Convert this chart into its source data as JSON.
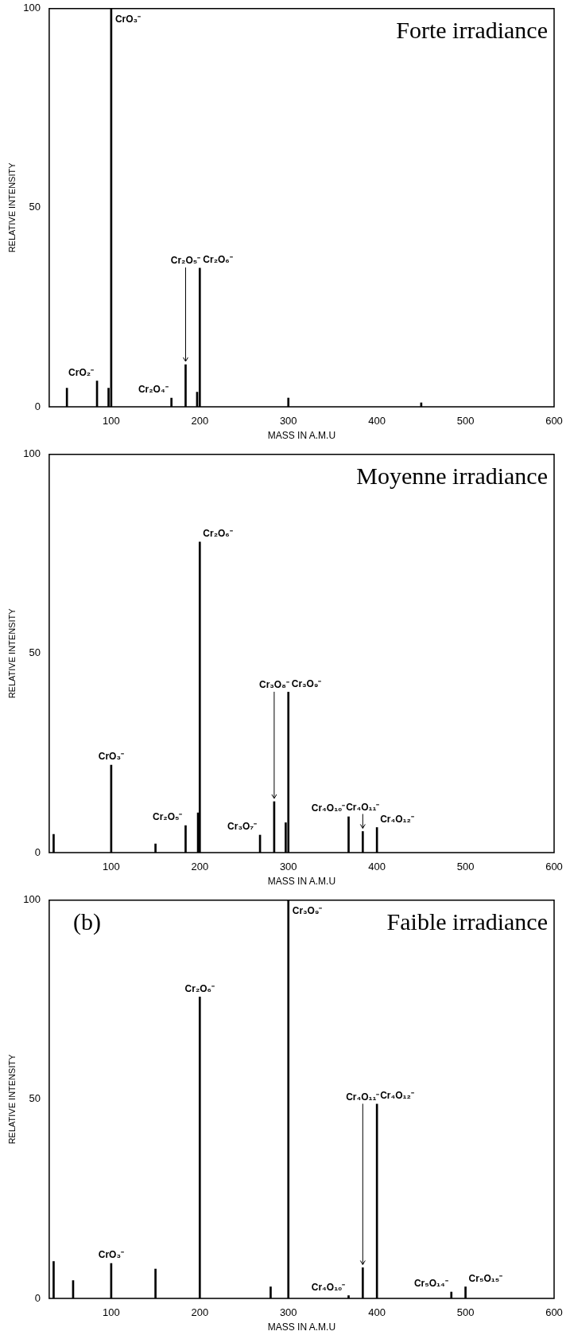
{
  "chart_data": [
    {
      "type": "bar",
      "title": "Forte irradiance",
      "xlabel": "MASS IN A.M.U",
      "ylabel": "RELATIVE INTENSITY",
      "x": [
        50,
        84,
        97,
        100,
        168,
        184,
        197,
        200,
        300,
        450
      ],
      "values": [
        4.7,
        6.5,
        4.7,
        100,
        2.2,
        10.6,
        3.7,
        34.8,
        2.2,
        1
      ],
      "color": "#000000",
      "xlim": [
        30,
        600
      ],
      "ylim": [
        0,
        100
      ],
      "xticks": [
        100,
        200,
        300,
        400,
        500,
        600
      ],
      "yticks": [
        0,
        50,
        100
      ],
      "grid": false,
      "legend": false,
      "annotations": [
        {
          "text": "CrO₂⁻",
          "x": 84,
          "y": 6.5
        },
        {
          "text": "CrO₃⁻",
          "x": 100,
          "y": 100
        },
        {
          "text": "Cr₂O₄⁻",
          "x": 168,
          "y": 2.2
        },
        {
          "text": "Cr₂O₅⁻",
          "x": 184,
          "y": 10.6
        },
        {
          "text": "Cr₂O₆⁻",
          "x": 200,
          "y": 34.8
        }
      ]
    },
    {
      "type": "bar",
      "title": "Moyenne irradiance",
      "xlabel": "MASS IN A.M.U",
      "ylabel": "RELATIVE INTENSITY",
      "x": [
        35,
        100,
        150,
        184,
        198,
        200,
        268,
        284,
        297,
        300,
        368,
        384,
        400
      ],
      "values": [
        4.6,
        22,
        2.2,
        6.8,
        10,
        78,
        4.4,
        12.8,
        7.5,
        40.3,
        9,
        5.3,
        6.3
      ],
      "color": "#000000",
      "xlim": [
        30,
        600
      ],
      "ylim": [
        0,
        100
      ],
      "xticks": [
        100,
        200,
        300,
        400,
        500,
        600
      ],
      "yticks": [
        0,
        50,
        100
      ],
      "grid": false,
      "legend": false,
      "annotations": [
        {
          "text": "CrO₃⁻",
          "x": 100,
          "y": 22
        },
        {
          "text": "Cr₂O₅⁻",
          "x": 184,
          "y": 6.8
        },
        {
          "text": "Cr₂O₆⁻",
          "x": 200,
          "y": 78
        },
        {
          "text": "Cr₃O₇⁻",
          "x": 268,
          "y": 4.4
        },
        {
          "text": "Cr₃O₈⁻",
          "x": 284,
          "y": 12.8
        },
        {
          "text": "Cr₃O₉⁻",
          "x": 300,
          "y": 40.3
        },
        {
          "text": "Cr₄O₁₀⁻",
          "x": 368,
          "y": 9
        },
        {
          "text": "Cr₄O₁₁⁻",
          "x": 384,
          "y": 5.3
        },
        {
          "text": "Cr₄O₁₂⁻",
          "x": 400,
          "y": 6.3
        }
      ]
    },
    {
      "type": "bar",
      "title": "Faible irradiance",
      "xlabel": "MASS IN A.M.U",
      "ylabel": "RELATIVE INTENSITY",
      "x": [
        35,
        57,
        100,
        150,
        200,
        280,
        300,
        368,
        384,
        400,
        484,
        500
      ],
      "values": [
        9.3,
        4.5,
        8.8,
        7.4,
        75.7,
        2.9,
        100,
        0.7,
        7.7,
        48.8,
        1.6,
        2.9
      ],
      "color": "#000000",
      "xlim": [
        30,
        600
      ],
      "ylim": [
        0,
        100
      ],
      "xticks": [
        100,
        200,
        300,
        400,
        500,
        600
      ],
      "yticks": [
        0,
        50,
        100
      ],
      "grid": false,
      "legend": false,
      "annotations": [
        "(b)",
        {
          "text": "CrO₃⁻",
          "x": 100,
          "y": 8.8
        },
        {
          "text": "Cr₂O₆⁻",
          "x": 200,
          "y": 75.7
        },
        {
          "text": "Cr₃O₉⁻",
          "x": 300,
          "y": 100
        },
        {
          "text": "Cr₄O₁₀⁻",
          "x": 368,
          "y": 0.7
        },
        {
          "text": "Cr₄O₁₁⁻",
          "x": 384,
          "y": 7.7
        },
        {
          "text": "Cr₄O₁₂⁻",
          "x": 400,
          "y": 48.8
        },
        {
          "text": "Cr₅O₁₄⁻",
          "x": 484,
          "y": 1.6
        },
        {
          "text": "Cr₅O₁₅⁻",
          "x": 500,
          "y": 2.9
        }
      ]
    }
  ]
}
